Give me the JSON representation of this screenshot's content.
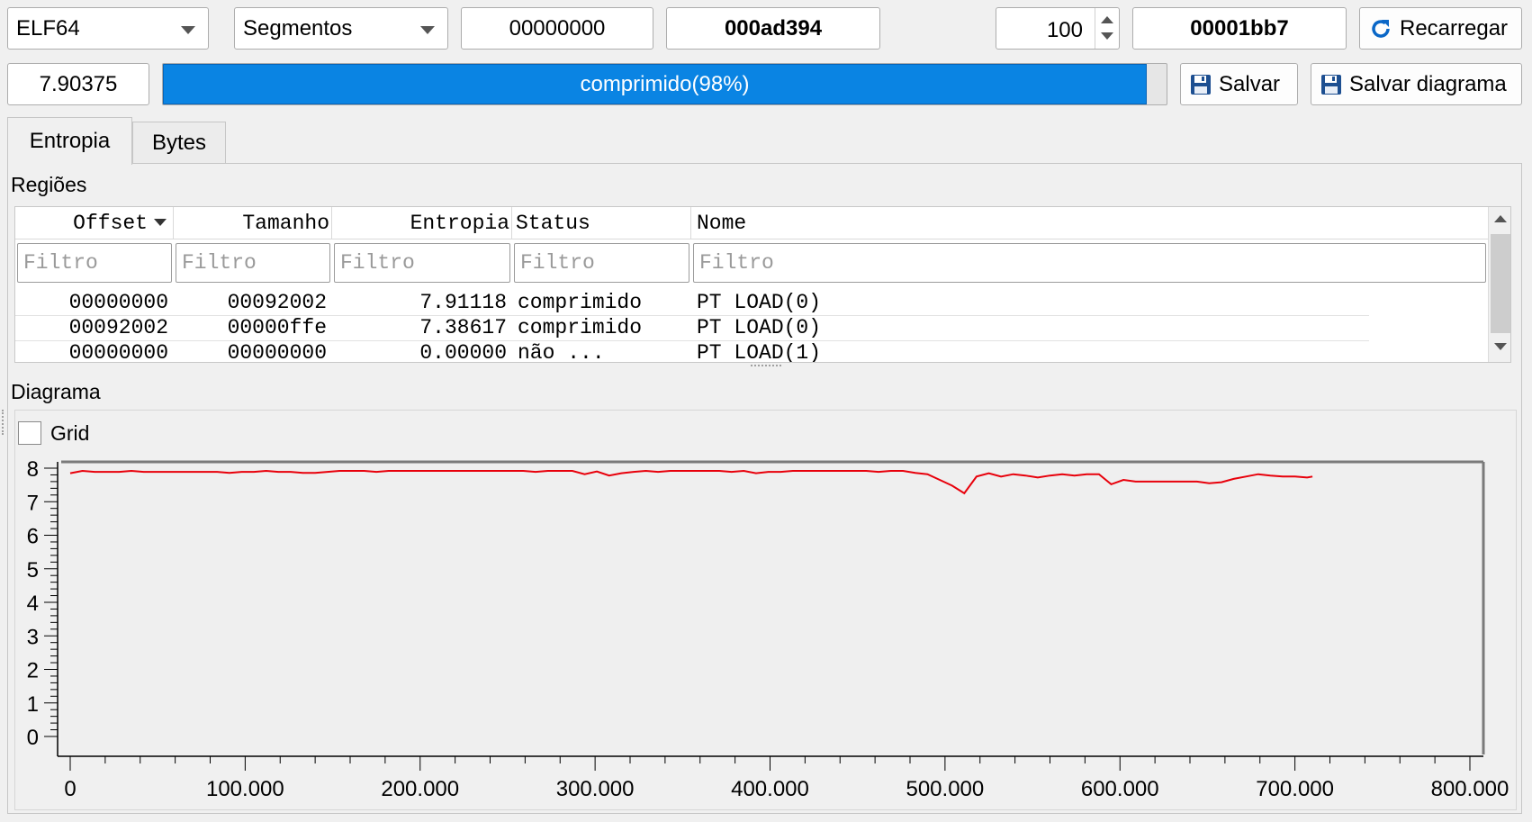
{
  "toolbar": {
    "format_value": "ELF64",
    "mode_value": "Segmentos",
    "offset_value": "00000000",
    "size_value": "000ad394",
    "block_value": "100",
    "count_value": "00001bb7",
    "reload_label": "Recarregar",
    "entropy_value": "7.90375",
    "progress_text": "comprimido(98%)",
    "progress_percent": 98,
    "save_label": "Salvar",
    "save_diagram_label": "Salvar diagrama"
  },
  "tabs": [
    "Entropia",
    "Bytes"
  ],
  "regions": {
    "title": "Regiões",
    "columns": [
      "Offset",
      "Tamanho",
      "Entropia",
      "Status",
      "Nome"
    ],
    "filter_placeholder": "Filtro",
    "rows": [
      [
        "00000000",
        "00092002",
        "7.91118",
        "comprimido",
        "PT LOAD(0)"
      ],
      [
        "00092002",
        "00000ffe",
        "7.38617",
        "comprimido",
        "PT LOAD(0)"
      ],
      [
        "00000000",
        "00000000",
        "0.00000",
        "não ...",
        "PT LOAD(1)"
      ]
    ]
  },
  "diagram": {
    "title": "Diagrama",
    "grid_label": "Grid",
    "grid_checked": false
  },
  "chart_data": {
    "type": "line",
    "xlim": [
      0,
      800000
    ],
    "ylim": [
      0,
      8
    ],
    "xticks": [
      "0",
      "100.000",
      "200.000",
      "300.000",
      "400.000",
      "500.000",
      "600.000",
      "700.000",
      "800.000"
    ],
    "yticks": [
      "0",
      "1",
      "2",
      "3",
      "4",
      "5",
      "6",
      "7",
      "8"
    ],
    "grid": false,
    "color": "#e8000b",
    "x": [
      0,
      7000,
      14000,
      21000,
      28000,
      35000,
      42000,
      49000,
      56000,
      63000,
      70000,
      77000,
      84000,
      91000,
      98000,
      105000,
      112000,
      119000,
      126000,
      133000,
      140000,
      147000,
      154000,
      161000,
      168000,
      175000,
      182000,
      189000,
      196000,
      203000,
      210000,
      217000,
      224000,
      231000,
      238000,
      245000,
      252000,
      259000,
      266000,
      273000,
      280000,
      287000,
      294000,
      301000,
      308000,
      315000,
      322000,
      329000,
      336000,
      343000,
      350000,
      357000,
      364000,
      371000,
      378000,
      385000,
      392000,
      399000,
      406000,
      413000,
      420000,
      427000,
      434000,
      441000,
      448000,
      455000,
      462000,
      469000,
      476000,
      483000,
      490000,
      497000,
      504000,
      511000,
      518000,
      525000,
      532000,
      539000,
      546000,
      553000,
      560000,
      567000,
      574000,
      581000,
      588000,
      595000,
      602000,
      609000,
      616000,
      623000,
      630000,
      637000,
      644000,
      651000,
      658000,
      665000,
      672000,
      679000,
      686000,
      693000,
      700000,
      707000,
      710000
    ],
    "y": [
      7.85,
      7.92,
      7.89,
      7.89,
      7.89,
      7.92,
      7.89,
      7.89,
      7.89,
      7.89,
      7.89,
      7.89,
      7.89,
      7.86,
      7.89,
      7.89,
      7.92,
      7.89,
      7.89,
      7.86,
      7.86,
      7.89,
      7.92,
      7.92,
      7.92,
      7.89,
      7.92,
      7.92,
      7.92,
      7.92,
      7.92,
      7.92,
      7.92,
      7.92,
      7.92,
      7.92,
      7.92,
      7.92,
      7.89,
      7.92,
      7.92,
      7.92,
      7.82,
      7.9,
      7.78,
      7.85,
      7.89,
      7.92,
      7.89,
      7.92,
      7.92,
      7.92,
      7.92,
      7.92,
      7.89,
      7.92,
      7.85,
      7.89,
      7.89,
      7.92,
      7.92,
      7.92,
      7.92,
      7.92,
      7.92,
      7.92,
      7.89,
      7.92,
      7.92,
      7.86,
      7.82,
      7.65,
      7.48,
      7.25,
      7.75,
      7.85,
      7.75,
      7.82,
      7.78,
      7.72,
      7.78,
      7.82,
      7.78,
      7.82,
      7.82,
      7.52,
      7.65,
      7.6,
      7.6,
      7.6,
      7.6,
      7.6,
      7.6,
      7.55,
      7.58,
      7.68,
      7.75,
      7.82,
      7.78,
      7.75,
      7.75,
      7.72,
      7.75
    ]
  }
}
